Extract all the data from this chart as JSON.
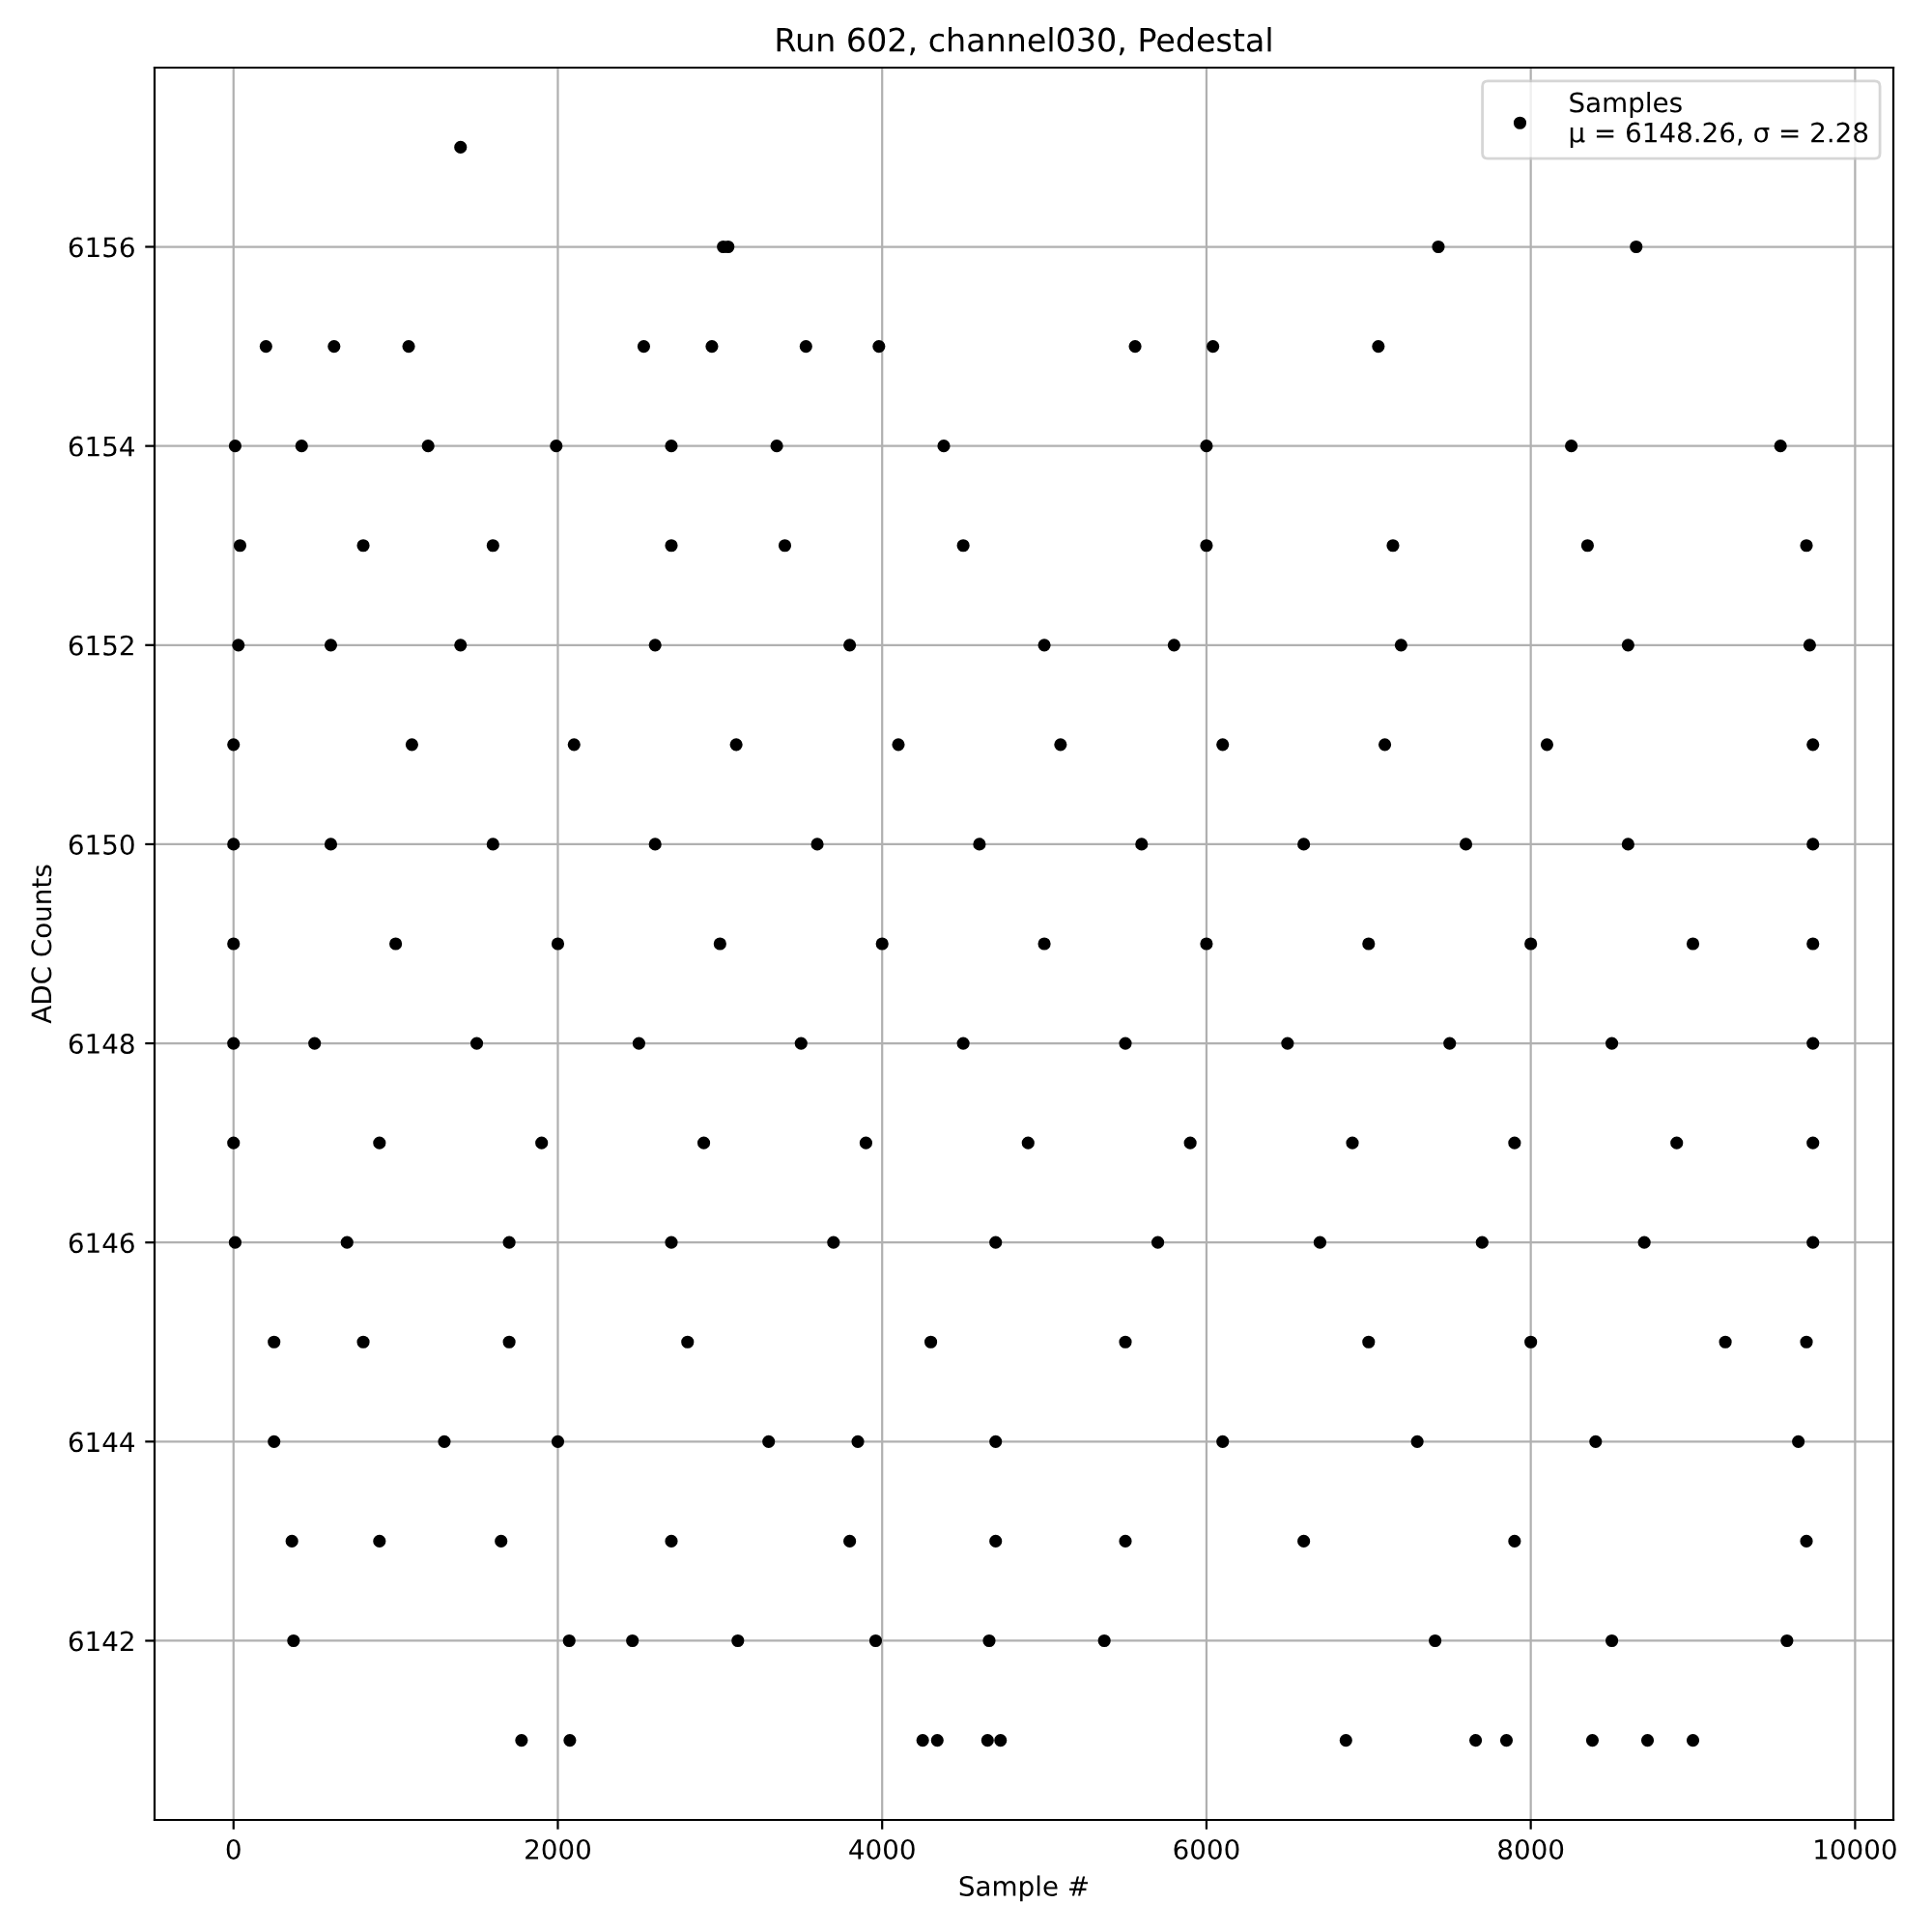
{
  "chart_data": {
    "type": "scatter",
    "title": "Run 602, channel030, Pedestal",
    "xlabel": "Sample #",
    "ylabel": "ADC Counts",
    "xlim": [
      -487,
      10236
    ],
    "ylim": [
      6140.2,
      6157.8
    ],
    "xticks": [
      0,
      2000,
      4000,
      6000,
      8000,
      10000
    ],
    "yticks": [
      6142,
      6144,
      6146,
      6148,
      6150,
      6152,
      6154,
      6156
    ],
    "grid": true,
    "legend": "top right",
    "marker": "circle",
    "series": [
      {
        "name": "Samples\nμ = 6148.26, σ = 2.28",
        "color": "#000000",
        "x": [
          1400,
          3020,
          3050,
          7430,
          8650,
          200,
          620,
          1080,
          2530,
          2950,
          3530,
          3980,
          5560,
          6040,
          7060,
          10,
          420,
          1200,
          1990,
          2700,
          3350,
          4380,
          6000,
          8250,
          9540,
          40,
          800,
          1600,
          2700,
          3400,
          4500,
          6000,
          7150,
          8350,
          9700,
          30,
          600,
          1400,
          2600,
          3800,
          5000,
          5800,
          7200,
          8600,
          9720,
          0,
          1100,
          2100,
          3100,
          4100,
          5100,
          6100,
          7100,
          8100,
          9740,
          0,
          600,
          1600,
          2600,
          3600,
          4600,
          5600,
          6600,
          7600,
          8600,
          9740,
          0,
          1000,
          2000,
          3000,
          4000,
          5000,
          6000,
          7000,
          8000,
          9000,
          9740,
          0,
          500,
          1500,
          2500,
          3500,
          4500,
          5500,
          6500,
          7500,
          8500,
          9740,
          0,
          900,
          1900,
          2900,
          3900,
          4900,
          5900,
          6900,
          7900,
          8900,
          9740,
          10,
          700,
          1700,
          2700,
          3700,
          4700,
          5700,
          6700,
          7700,
          8700,
          9740,
          250,
          800,
          1700,
          2800,
          4300,
          5500,
          7000,
          8000,
          9200,
          9700,
          250,
          1300,
          2000,
          3300,
          3850,
          4700,
          6100,
          7300,
          8400,
          9650,
          360,
          900,
          1650,
          2700,
          3800,
          4700,
          5500,
          6600,
          7900,
          9700,
          370,
          2070,
          2460,
          3110,
          3960,
          4660,
          5370,
          7410,
          8500,
          9580,
          1776,
          2074,
          4250,
          4340,
          4650,
          4730,
          6860,
          7660,
          7850,
          8380,
          8720,
          9000
        ],
        "values": [
          6157,
          6156,
          6156,
          6156,
          6156,
          6155,
          6155,
          6155,
          6155,
          6155,
          6155,
          6155,
          6155,
          6155,
          6155,
          6154,
          6154,
          6154,
          6154,
          6154,
          6154,
          6154,
          6154,
          6154,
          6154,
          6153,
          6153,
          6153,
          6153,
          6153,
          6153,
          6153,
          6153,
          6153,
          6153,
          6152,
          6152,
          6152,
          6152,
          6152,
          6152,
          6152,
          6152,
          6152,
          6152,
          6151,
          6151,
          6151,
          6151,
          6151,
          6151,
          6151,
          6151,
          6151,
          6151,
          6150,
          6150,
          6150,
          6150,
          6150,
          6150,
          6150,
          6150,
          6150,
          6150,
          6150,
          6149,
          6149,
          6149,
          6149,
          6149,
          6149,
          6149,
          6149,
          6149,
          6149,
          6149,
          6148,
          6148,
          6148,
          6148,
          6148,
          6148,
          6148,
          6148,
          6148,
          6148,
          6148,
          6147,
          6147,
          6147,
          6147,
          6147,
          6147,
          6147,
          6147,
          6147,
          6147,
          6147,
          6146,
          6146,
          6146,
          6146,
          6146,
          6146,
          6146,
          6146,
          6146,
          6146,
          6146,
          6145,
          6145,
          6145,
          6145,
          6145,
          6145,
          6145,
          6145,
          6145,
          6145,
          6144,
          6144,
          6144,
          6144,
          6144,
          6144,
          6144,
          6144,
          6144,
          6144,
          6143,
          6143,
          6143,
          6143,
          6143,
          6143,
          6143,
          6143,
          6143,
          6143,
          6142,
          6142,
          6142,
          6142,
          6142,
          6142,
          6142,
          6142,
          6142,
          6142,
          6141,
          6141,
          6141,
          6141,
          6141,
          6141,
          6141,
          6141,
          6141,
          6141,
          6141,
          6141
        ]
      }
    ]
  }
}
